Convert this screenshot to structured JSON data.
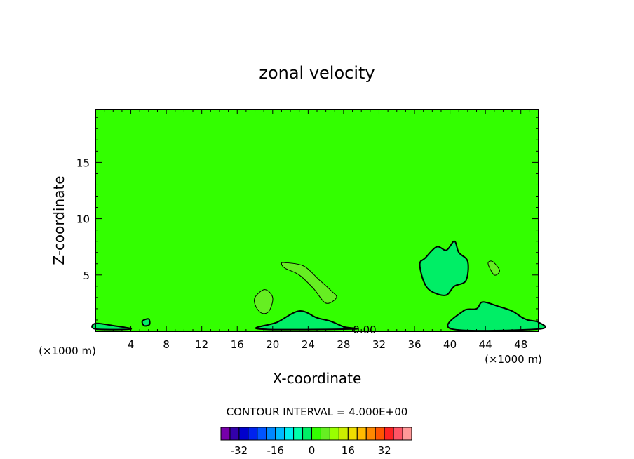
{
  "chart_data": {
    "type": "contour",
    "title": "zonal velocity",
    "xlabel": "X-coordinate",
    "ylabel": "Z-coordinate",
    "x_unit": "(×1000 m)",
    "y_unit": "(×1000 m)",
    "xlim": [
      0,
      50
    ],
    "ylim": [
      0,
      19.7
    ],
    "x_ticks": [
      4,
      8,
      12,
      16,
      20,
      24,
      28,
      32,
      36,
      40,
      44,
      48
    ],
    "y_ticks": [
      5,
      10,
      15
    ],
    "background_level_color": "#33ff00",
    "contour_interval_text": "CONTOUR INTERVAL = 4.000E+00",
    "contour_label": "0.00",
    "contours": [
      {
        "level": 4,
        "color": "#66ee22",
        "points": [
          [
            21.4,
            6.1
          ],
          [
            23.5,
            5.8
          ],
          [
            25.2,
            4.6
          ],
          [
            26.6,
            3.6
          ],
          [
            27.2,
            3.0
          ],
          [
            26.0,
            2.5
          ],
          [
            24.6,
            3.8
          ],
          [
            23.0,
            5.0
          ],
          [
            21.4,
            5.6
          ],
          [
            21.0,
            6.0
          ]
        ]
      },
      {
        "level": 4,
        "color": "#66ee22",
        "points": [
          [
            18.0,
            3.0
          ],
          [
            19.1,
            3.7
          ],
          [
            20.0,
            3.0
          ],
          [
            19.6,
            1.8
          ],
          [
            18.8,
            1.6
          ],
          [
            18.1,
            2.2
          ]
        ]
      },
      {
        "level": 4,
        "color": "#66ee22",
        "points": [
          [
            44.3,
            6.0
          ],
          [
            44.8,
            6.2
          ],
          [
            45.6,
            5.4
          ],
          [
            45.0,
            5.0
          ]
        ]
      },
      {
        "level": -4,
        "color": "#00ee66",
        "points": [
          [
            37.2,
            6.5
          ],
          [
            38.5,
            7.5
          ],
          [
            39.6,
            7.2
          ],
          [
            40.5,
            8.0
          ],
          [
            41.0,
            7.0
          ],
          [
            42.0,
            6.2
          ],
          [
            41.8,
            4.5
          ],
          [
            40.5,
            4.0
          ],
          [
            39.5,
            3.2
          ],
          [
            37.8,
            3.6
          ],
          [
            37.0,
            4.5
          ],
          [
            36.6,
            6.0
          ]
        ]
      },
      {
        "level": -4,
        "color": "#00ee66",
        "points": [
          [
            40.2,
            0.2
          ],
          [
            41.5,
            1.8
          ],
          [
            43.0,
            2.0
          ],
          [
            43.7,
            2.6
          ],
          [
            45.5,
            2.2
          ],
          [
            47.0,
            1.8
          ],
          [
            48.2,
            1.2
          ],
          [
            48.8,
            1.0
          ],
          [
            50.0,
            0.8
          ],
          [
            50.0,
            0.2
          ]
        ]
      },
      {
        "level": -4,
        "color": "#00ee66",
        "points": [
          [
            0.0,
            0.7
          ],
          [
            2.0,
            0.5
          ],
          [
            4.0,
            0.2
          ],
          [
            0.0,
            0.2
          ]
        ]
      },
      {
        "level": -4,
        "color": "#00ee66",
        "points": [
          [
            18.5,
            0.2
          ],
          [
            20.5,
            0.8
          ],
          [
            23.0,
            1.8
          ],
          [
            25.0,
            1.2
          ],
          [
            26.5,
            0.9
          ],
          [
            28.0,
            0.4
          ],
          [
            29.0,
            0.2
          ]
        ]
      },
      {
        "level": -4,
        "color": "#00ee66",
        "points": [
          [
            5.3,
            0.9
          ],
          [
            6.0,
            1.1
          ],
          [
            6.1,
            0.6
          ],
          [
            5.5,
            0.5
          ]
        ]
      }
    ],
    "colorbar": {
      "tick_labels": [
        "-32",
        "-16",
        "0",
        "16",
        "32"
      ],
      "tick_values": [
        -32,
        -16,
        0,
        16,
        32
      ],
      "levels": [
        -36,
        -32,
        -28,
        -24,
        -20,
        -16,
        -12,
        -8,
        -4,
        0,
        4,
        8,
        12,
        16,
        20,
        24,
        28,
        32,
        36
      ],
      "colors": [
        "#7700aa",
        "#3300aa",
        "#0000cc",
        "#0022ee",
        "#0055ff",
        "#0088ff",
        "#00bbff",
        "#00eeee",
        "#00ffaa",
        "#00ee66",
        "#33ff00",
        "#66ee22",
        "#99ff00",
        "#ccee00",
        "#eedd00",
        "#ffbb00",
        "#ff8800",
        "#ff5500",
        "#ff2222",
        "#ff5566",
        "#ff9999"
      ]
    }
  }
}
